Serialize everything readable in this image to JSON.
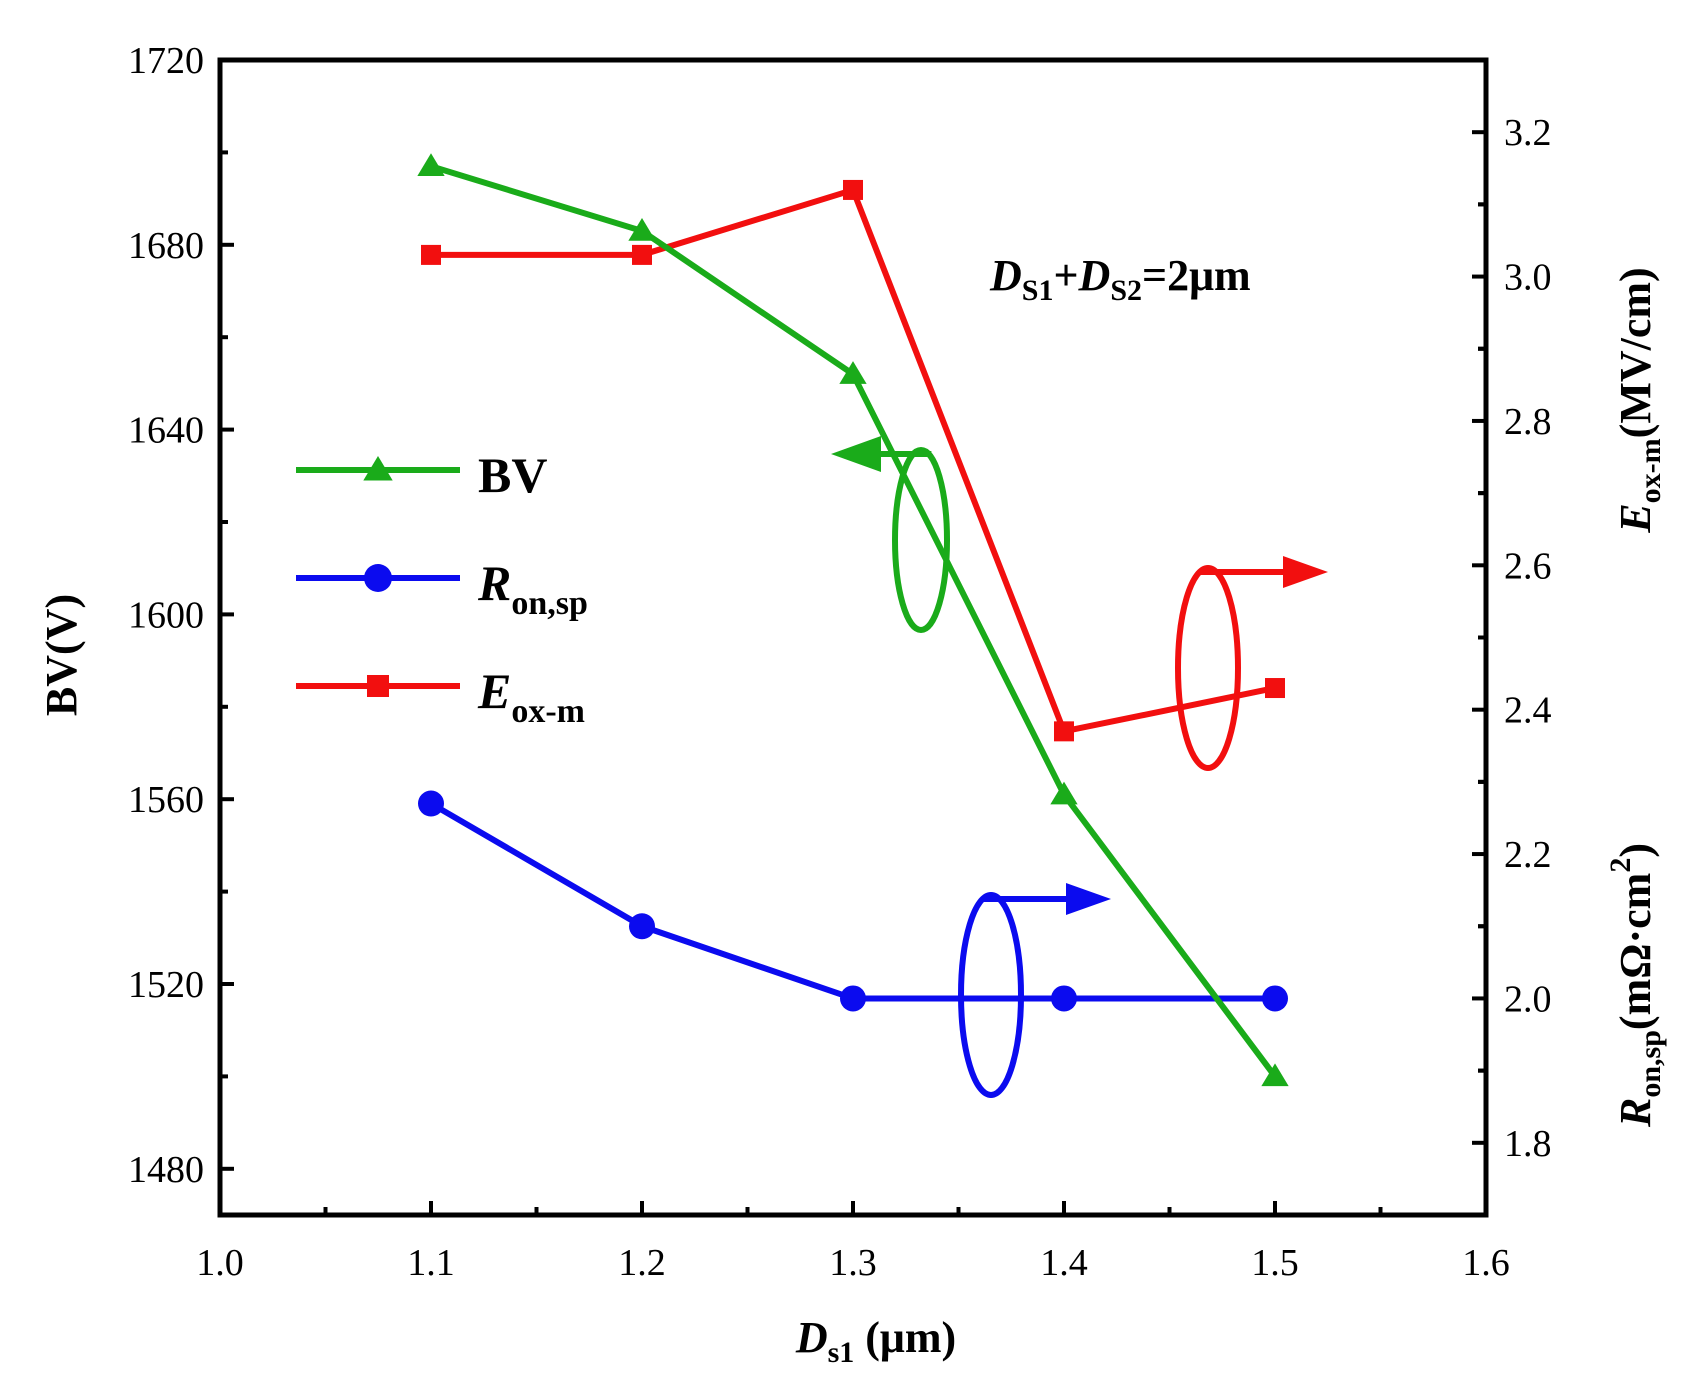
{
  "chart_data": {
    "type": "line",
    "x": [
      1.1,
      1.2,
      1.3,
      1.4,
      1.5
    ],
    "xlim": [
      1.0,
      1.6
    ],
    "xticks": [
      "1.0",
      "1.1",
      "1.2",
      "1.3",
      "1.4",
      "1.5",
      "1.6"
    ],
    "xlabel": {
      "main": "D",
      "sub": "s1",
      "unit": " (μm)"
    },
    "ylim_left": [
      1470,
      1720
    ],
    "yticks_left": [
      "1480",
      "1520",
      "1560",
      "1600",
      "1640",
      "1680",
      "1720"
    ],
    "ylabel_left": "BV(V)",
    "ylim_right": [
      1.7,
      3.3
    ],
    "yticks_right": [
      "1.8",
      "2.0",
      "2.2",
      "2.4",
      "2.6",
      "2.8",
      "3.0",
      "3.2"
    ],
    "ylabel_right_top": {
      "main": "E",
      "sub": "ox-m",
      "unit": "(MV/cm)"
    },
    "ylabel_right_bottom": {
      "main": "R",
      "sub": "on,sp",
      "unit": "(mΩ·cm",
      "sup": "2",
      "close": ")"
    },
    "annotation": {
      "d1": "D",
      "s1": "S1",
      "plus": "+",
      "d2": "D",
      "s2": "S2",
      "rest": "=2μm"
    },
    "series": [
      {
        "name": "BV",
        "name_main": "BV",
        "name_sub": "",
        "axis": "left",
        "color": "#1aab1a",
        "marker": "triangle",
        "values": [
          1697,
          1683,
          1652,
          1561,
          1500
        ]
      },
      {
        "name": "Ron,sp",
        "name_main": "R",
        "name_sub": "on,sp",
        "axis": "right",
        "color": "#0b0bef",
        "marker": "circle",
        "values": [
          2.27,
          2.1,
          2.0,
          2.0,
          2.0
        ]
      },
      {
        "name": "Eox-m",
        "name_main": "E",
        "name_sub": "ox-m",
        "axis": "right",
        "color": "#f20f0f",
        "marker": "square",
        "values": [
          3.03,
          3.03,
          3.12,
          2.37,
          2.43
        ]
      }
    ]
  }
}
